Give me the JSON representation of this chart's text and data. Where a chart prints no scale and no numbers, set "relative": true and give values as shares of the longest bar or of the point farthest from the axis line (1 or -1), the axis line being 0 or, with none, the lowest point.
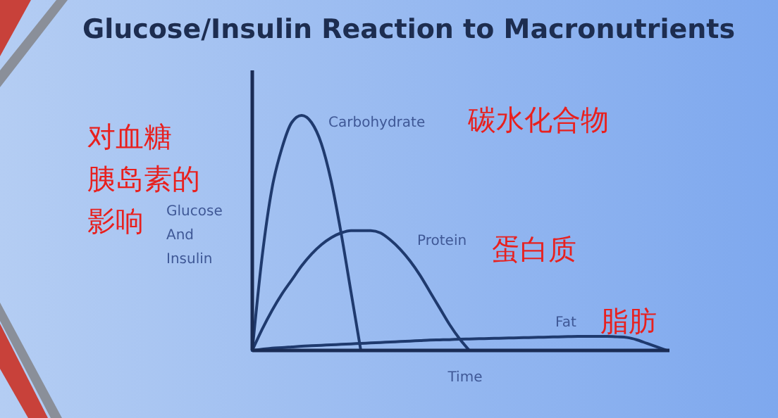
{
  "chart_data": {
    "type": "line",
    "relative": true,
    "title": "Glucose/Insulin Reaction to Macronutrients",
    "xlabel": "Time",
    "ylabel": "Glucose\nAnd\nInsulin",
    "categories": [
      null,
      null,
      null,
      null,
      null,
      null,
      null,
      null,
      null,
      null,
      null,
      null,
      null,
      null,
      null,
      null,
      null,
      null,
      null,
      null,
      null,
      null,
      null,
      null,
      null,
      null,
      null,
      null,
      null,
      null,
      null,
      null,
      null,
      null,
      null,
      null,
      null,
      null,
      null,
      null,
      null,
      null,
      null
    ],
    "series": [
      {
        "name": "Carbohydrate",
        "color": "#1f3a6e",
        "values": [
          0,
          0.4,
          0.69,
          0.86,
          0.97,
          1,
          0.97,
          0.88,
          0.72,
          0.5,
          0.25,
          0,
          null,
          null,
          null,
          null,
          null,
          null,
          null,
          null,
          null,
          null,
          null,
          null,
          null,
          null,
          null,
          null,
          null,
          null,
          null,
          null,
          null,
          null,
          null,
          null,
          null,
          null,
          null,
          null,
          null,
          null,
          null
        ]
      },
      {
        "name": "Protein",
        "color": "#1f3a6e",
        "values": [
          0,
          0.09,
          0.17,
          0.24,
          0.3,
          0.36,
          0.41,
          0.45,
          0.48,
          0.5,
          0.51,
          0.51,
          0.51,
          0.5,
          0.47,
          0.43,
          0.38,
          0.32,
          0.25,
          0.18,
          0.11,
          0.05,
          0,
          null,
          null,
          null,
          null,
          null,
          null,
          null,
          null,
          null,
          null,
          null,
          null,
          null,
          null,
          null,
          null,
          null,
          null,
          null,
          null
        ]
      },
      {
        "name": "Fat",
        "color": "#1f3a6e",
        "values": [
          0,
          0.005,
          0.01,
          0.012,
          0.015,
          0.018,
          0.02,
          0.022,
          0.024,
          0.026,
          0.028,
          0.03,
          0.032,
          0.034,
          0.036,
          0.038,
          0.04,
          0.042,
          0.044,
          0.045,
          0.046,
          0.048,
          0.049,
          0.05,
          0.051,
          0.052,
          0.053,
          0.054,
          0.055,
          0.056,
          0.057,
          0.058,
          0.059,
          0.06,
          0.06,
          0.06,
          0.06,
          0.058,
          0.055,
          0.045,
          0.03,
          0.015,
          0
        ]
      }
    ],
    "annotations": [
      "碳水化合物",
      "蛋白质",
      "脂肪",
      "对血糖",
      "胰岛素的",
      "影响"
    ]
  }
}
